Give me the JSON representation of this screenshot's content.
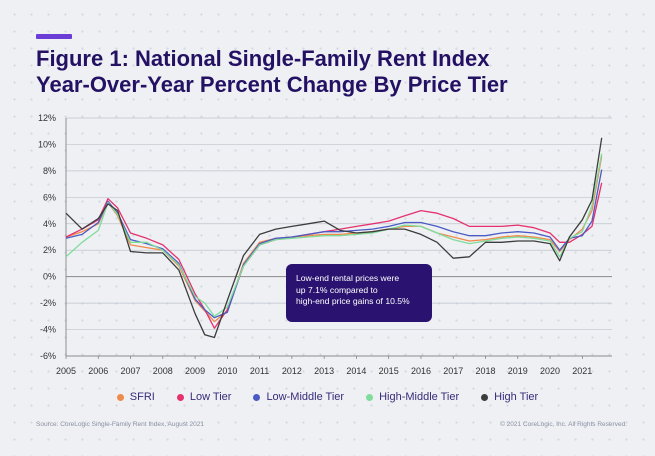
{
  "title": {
    "line1": "Figure 1: National Single-Family Rent Index",
    "line2": "Year-Over-Year Percent Change By Price Tier"
  },
  "callout": {
    "line1": "Low-end rental prices were",
    "line2": "up 7.1% compared to",
    "line3": "high-end price gains of 10.5%"
  },
  "footer": {
    "source": "Source: CoreLogic Single-Family Rent Index, August 2021",
    "copyright": "© 2021 CoreLogic, Inc. All Rights Reserved."
  },
  "colors": {
    "accent": "#6c3dd6",
    "title": "#241163",
    "callout_bg": "#2a1370"
  },
  "chart_data": {
    "type": "line",
    "title": "Figure 1: National Single-Family Rent Index Year-Over-Year Percent Change By Price Tier",
    "xlabel": "",
    "ylabel": "",
    "xlim": [
      2005,
      2021.92
    ],
    "ylim": [
      -6,
      12
    ],
    "x_ticks": [
      "2005",
      "2006",
      "2007",
      "2008",
      "2009",
      "2010",
      "2011",
      "2012",
      "2013",
      "2014",
      "2015",
      "2016",
      "2017",
      "2018",
      "2019",
      "2020",
      "2021"
    ],
    "y_ticks": [
      "12%",
      "10%",
      "8%",
      "6%",
      "4%",
      "2%",
      "0%",
      "-2%",
      "-4%",
      "-6%"
    ],
    "grid": "horizontal",
    "legend_position": "bottom",
    "x": [
      2005.0,
      2005.5,
      2006.0,
      2006.3,
      2006.6,
      2007.0,
      2007.5,
      2008.0,
      2008.5,
      2009.0,
      2009.3,
      2009.6,
      2010.0,
      2010.5,
      2011.0,
      2011.5,
      2012.0,
      2012.5,
      2013.0,
      2013.5,
      2014.0,
      2014.5,
      2015.0,
      2015.5,
      2016.0,
      2016.5,
      2017.0,
      2017.5,
      2018.0,
      2018.5,
      2019.0,
      2019.5,
      2020.0,
      2020.3,
      2020.6,
      2021.0,
      2021.3,
      2021.6
    ],
    "series": [
      {
        "name": "SFRI",
        "color": "#f08a4b",
        "values": [
          3.0,
          3.4,
          4.0,
          5.6,
          4.6,
          2.4,
          2.2,
          2.0,
          0.8,
          -1.8,
          -2.6,
          -3.4,
          -2.6,
          1.0,
          2.6,
          2.9,
          3.0,
          3.1,
          3.2,
          3.2,
          3.3,
          3.4,
          3.6,
          3.8,
          3.8,
          3.3,
          3.0,
          2.7,
          2.8,
          3.0,
          3.1,
          3.0,
          2.8,
          1.9,
          2.8,
          3.6,
          5.0,
          9.1
        ]
      },
      {
        "name": "Low Tier",
        "color": "#e5326e",
        "values": [
          3.0,
          3.6,
          4.3,
          5.9,
          5.2,
          3.3,
          2.9,
          2.4,
          1.3,
          -1.3,
          -2.5,
          -3.9,
          -2.5,
          0.8,
          2.4,
          2.8,
          3.0,
          3.2,
          3.4,
          3.6,
          3.8,
          4.0,
          4.2,
          4.6,
          5.0,
          4.8,
          4.4,
          3.8,
          3.8,
          3.8,
          3.9,
          3.7,
          3.3,
          2.6,
          2.6,
          3.2,
          3.8,
          7.1
        ]
      },
      {
        "name": "Low-Middle Tier",
        "color": "#4a5bc4",
        "values": [
          2.9,
          3.2,
          4.1,
          5.7,
          4.8,
          2.8,
          2.5,
          2.1,
          1.0,
          -1.7,
          -2.5,
          -3.1,
          -2.7,
          0.9,
          2.5,
          2.9,
          3.0,
          3.2,
          3.4,
          3.4,
          3.5,
          3.6,
          3.8,
          4.1,
          4.1,
          3.8,
          3.4,
          3.1,
          3.1,
          3.3,
          3.4,
          3.3,
          3.0,
          2.0,
          2.9,
          3.1,
          4.2,
          8.1
        ]
      },
      {
        "name": "High-Middle Tier",
        "color": "#7fdc9b",
        "values": [
          1.5,
          2.6,
          3.5,
          5.6,
          4.7,
          2.6,
          2.6,
          2.0,
          0.9,
          -1.5,
          -2.0,
          -3.0,
          -2.3,
          0.8,
          2.4,
          2.8,
          2.9,
          3.0,
          3.1,
          3.1,
          3.2,
          3.3,
          3.6,
          3.9,
          3.8,
          3.3,
          2.8,
          2.5,
          2.7,
          2.9,
          3.0,
          2.9,
          2.7,
          1.5,
          2.9,
          3.4,
          5.4,
          9.3
        ]
      },
      {
        "name": "High Tier",
        "color": "#3c3c3c",
        "values": [
          4.8,
          3.6,
          4.4,
          5.5,
          5.0,
          1.9,
          1.8,
          1.8,
          0.5,
          -2.8,
          -4.4,
          -4.6,
          -1.8,
          1.6,
          3.2,
          3.6,
          3.8,
          4.0,
          4.2,
          3.5,
          3.3,
          3.4,
          3.6,
          3.6,
          3.2,
          2.6,
          1.4,
          1.5,
          2.6,
          2.6,
          2.7,
          2.7,
          2.5,
          1.2,
          3.0,
          4.3,
          5.8,
          10.5
        ]
      }
    ]
  }
}
